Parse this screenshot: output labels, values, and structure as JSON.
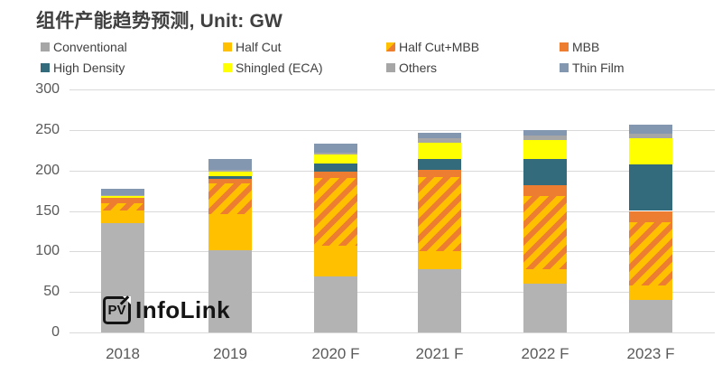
{
  "title": "组件产能趋势预测, Unit: GW",
  "logo": {
    "badge": "PV",
    "text": "InfoLink"
  },
  "colors": {
    "title_text": "#404040",
    "axis_text": "#595959",
    "gridline": "#d9d9d9",
    "conventional": "#b3b3b3",
    "half_cut": "#ffc000",
    "half_cut_mbb_stripe": "#ed7d31",
    "mbb": "#ed7d31",
    "high_density": "#336b7c",
    "shingled": "#ffff00",
    "others": "#a6a6a6",
    "thin_film": "#8497b0"
  },
  "legend": [
    {
      "id": "conventional",
      "label": "Conventional",
      "color": "#a6a6a6",
      "hatch": false
    },
    {
      "id": "half-cut",
      "label": "Half Cut",
      "color": "#ffc000",
      "hatch": false
    },
    {
      "id": "half-cut-mbb",
      "label": "Half Cut+MBB",
      "color": "#ffc000",
      "hatch": true
    },
    {
      "id": "mbb",
      "label": "MBB",
      "color": "#ed7d31",
      "hatch": false
    },
    {
      "id": "high-density",
      "label": "High Density",
      "color": "#336b7c",
      "hatch": false
    },
    {
      "id": "shingled-eca",
      "label": "Shingled (ECA)",
      "color": "#ffff00",
      "hatch": false
    },
    {
      "id": "others",
      "label": "Others",
      "color": "#a6a6a6",
      "hatch": false
    },
    {
      "id": "thin-film",
      "label": "Thin Film",
      "color": "#8497b0",
      "hatch": false
    }
  ],
  "chart_data": {
    "type": "bar",
    "stacked": true,
    "unit": "GW",
    "title": "组件产能趋势预测, Unit: GW",
    "categories": [
      "2018",
      "2019",
      "2020 F",
      "2021 F",
      "2022 F",
      "2023 F"
    ],
    "series": [
      {
        "name": "Conventional",
        "color": "#b3b3b3",
        "hatch": false,
        "values": [
          135,
          101,
          69,
          78,
          60,
          40
        ]
      },
      {
        "name": "Half Cut",
        "color": "#ffc000",
        "hatch": false,
        "values": [
          16,
          45,
          38,
          22,
          18,
          18
        ]
      },
      {
        "name": "Half Cut+MBB",
        "color": "#ffc000",
        "hatch": true,
        "values": [
          8,
          38,
          84,
          92,
          90,
          78
        ]
      },
      {
        "name": "MBB",
        "color": "#ed7d31",
        "hatch": false,
        "values": [
          7,
          6,
          8,
          9,
          14,
          14
        ]
      },
      {
        "name": "High Density",
        "color": "#336b7c",
        "hatch": false,
        "values": [
          0,
          3,
          10,
          13,
          32,
          57
        ]
      },
      {
        "name": "Shingled (ECA)",
        "color": "#ffff00",
        "hatch": false,
        "values": [
          3,
          6,
          11,
          20,
          23,
          33
        ]
      },
      {
        "name": "Others",
        "color": "#a6a6a6",
        "hatch": false,
        "values": [
          1,
          2,
          2,
          6,
          6,
          5
        ]
      },
      {
        "name": "Thin Film",
        "color": "#8497b0",
        "hatch": false,
        "values": [
          7,
          13,
          11,
          7,
          7,
          12
        ]
      }
    ],
    "totals": [
      177,
      214,
      233,
      247,
      250,
      257
    ],
    "y_ticks": [
      0,
      50,
      100,
      150,
      200,
      250,
      300
    ],
    "ylim": [
      0,
      300
    ],
    "ylabel": "",
    "xlabel": "",
    "grid": true,
    "legend_position": "top"
  }
}
